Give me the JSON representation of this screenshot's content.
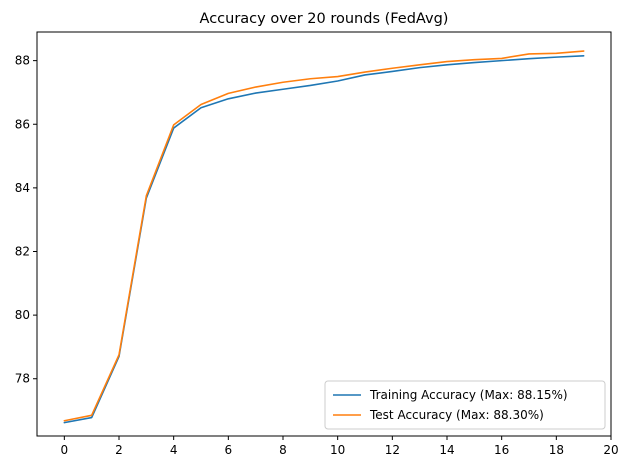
{
  "chart_data": {
    "type": "line",
    "title": "Accuracy over 20 rounds (FedAvg)",
    "xlabel": "",
    "ylabel": "",
    "xlim": [
      -1,
      20
    ],
    "ylim": [
      76.2,
      88.9
    ],
    "xticks": [
      0,
      2,
      4,
      6,
      8,
      10,
      12,
      14,
      16,
      18,
      20
    ],
    "yticks": [
      78,
      80,
      82,
      84,
      86,
      88
    ],
    "grid": false,
    "legend": "lower-right",
    "x": [
      0,
      1,
      2,
      3,
      4,
      5,
      6,
      7,
      8,
      9,
      10,
      11,
      12,
      13,
      14,
      15,
      16,
      17,
      18,
      19
    ],
    "series": [
      {
        "name": "Training Accuracy (Max: 88.15%)",
        "color": "#1f77b4",
        "values": [
          76.62,
          76.78,
          78.7,
          83.68,
          85.88,
          86.52,
          86.8,
          86.98,
          87.1,
          87.22,
          87.36,
          87.55,
          87.66,
          87.78,
          87.87,
          87.94,
          88.0,
          88.06,
          88.11,
          88.15
        ]
      },
      {
        "name": "Test Accuracy (Max: 88.30%)",
        "color": "#ff7f0e",
        "values": [
          76.68,
          76.85,
          78.75,
          83.75,
          85.98,
          86.62,
          86.97,
          87.17,
          87.32,
          87.43,
          87.5,
          87.64,
          87.76,
          87.87,
          87.97,
          88.03,
          88.07,
          88.21,
          88.23,
          88.3
        ]
      }
    ]
  }
}
